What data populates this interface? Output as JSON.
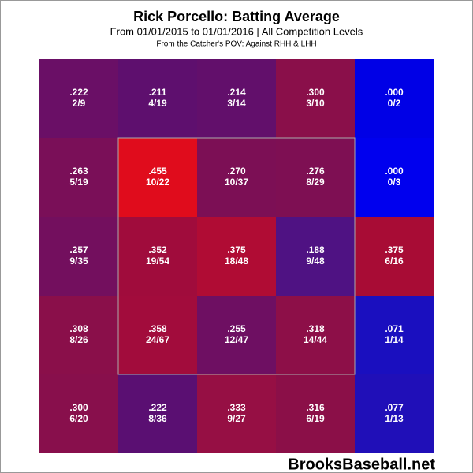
{
  "chart_data": {
    "type": "heatmap",
    "title": "Rick Porcello: Batting Average",
    "subtitle": "From 01/01/2015 to 01/01/2016 | All Competition Levels",
    "note": "From the Catcher's POV:  Against RHH & LHH",
    "watermark": "BrooksBaseball.net",
    "values": [
      [
        0.222,
        0.211,
        0.214,
        0.3,
        0.0
      ],
      [
        0.263,
        0.455,
        0.27,
        0.276,
        0.0
      ],
      [
        0.257,
        0.352,
        0.375,
        0.188,
        0.375
      ],
      [
        0.308,
        0.358,
        0.255,
        0.318,
        0.071
      ],
      [
        0.3,
        0.222,
        0.333,
        0.316,
        0.077
      ]
    ],
    "value_labels": [
      [
        ".222",
        ".211",
        ".214",
        ".300",
        ".000"
      ],
      [
        ".263",
        ".455",
        ".270",
        ".276",
        ".000"
      ],
      [
        ".257",
        ".352",
        ".375",
        ".188",
        ".375"
      ],
      [
        ".308",
        ".358",
        ".255",
        ".318",
        ".071"
      ],
      [
        ".300",
        ".222",
        ".333",
        ".316",
        ".077"
      ]
    ],
    "fractions": [
      [
        "2/9",
        "4/19",
        "3/14",
        "3/10",
        "0/2"
      ],
      [
        "5/19",
        "10/22",
        "10/37",
        "8/29",
        "0/3"
      ],
      [
        "9/35",
        "19/54",
        "18/48",
        "9/48",
        "6/16"
      ],
      [
        "8/26",
        "24/67",
        "12/47",
        "14/44",
        "1/14"
      ],
      [
        "6/20",
        "8/36",
        "9/27",
        "6/19",
        "1/13"
      ]
    ],
    "colors": [
      [
        "#6a0f66",
        "#5e0f6e",
        "#620f6b",
        "#8a0f4a",
        "#0000e6"
      ],
      [
        "#7a0f58",
        "#e00c1c",
        "#7c0f55",
        "#7e0f53",
        "#0000ee"
      ],
      [
        "#730f5e",
        "#a00c3c",
        "#b00c34",
        "#4f1283",
        "#a80c35"
      ],
      [
        "#8a0f4a",
        "#a20c3c",
        "#6e0f62",
        "#8d0f48",
        "#1a0fbf"
      ],
      [
        "#880f4c",
        "#5a0f72",
        "#960f44",
        "#8b0f48",
        "#200fb8"
      ]
    ]
  }
}
